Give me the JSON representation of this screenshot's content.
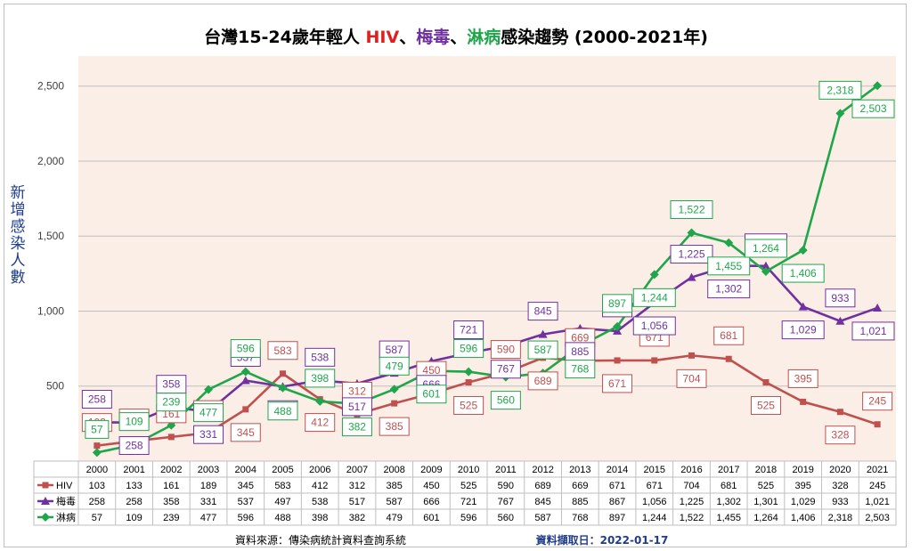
{
  "chart_data": {
    "type": "line",
    "title": {
      "prefix": "台灣15-24歲年輕人 ",
      "hiv": "HIV",
      "sep1": "、",
      "syphilis": "梅毒",
      "sep2": "、",
      "gonorrhea": "淋病",
      "suffix": "感染趨勢 (2000-2021年)"
    },
    "ylabel": "新增感染人數",
    "ylim": [
      0,
      2700
    ],
    "yticks": [
      0,
      500,
      1000,
      1500,
      2000,
      2500
    ],
    "ytick_labels": [
      "-",
      "500",
      "1,000",
      "1,500",
      "2,000",
      "2,500"
    ],
    "grid": true,
    "legend": "data-table",
    "categories": [
      "2000",
      "2001",
      "2002",
      "2003",
      "2004",
      "2005",
      "2006",
      "2007",
      "2008",
      "2009",
      "2010",
      "2011",
      "2012",
      "2013",
      "2014",
      "2015",
      "2016",
      "2017",
      "2018",
      "2019",
      "2020",
      "2021"
    ],
    "series": [
      {
        "name": "HIV",
        "color": "#c0504d",
        "marker": "square",
        "values": [
          103,
          133,
          161,
          189,
          345,
          583,
          412,
          312,
          385,
          450,
          525,
          590,
          689,
          669,
          671,
          671,
          704,
          681,
          525,
          395,
          328,
          245
        ],
        "labels": [
          "103",
          "133",
          "161",
          "189",
          "345",
          "583",
          "412",
          "312",
          "385",
          "450",
          "525",
          "590",
          "689",
          "669",
          "671",
          "671",
          "704",
          "681",
          "525",
          "395",
          "328",
          "245"
        ]
      },
      {
        "name": "梅毒",
        "color": "#7030a0",
        "marker": "triangle",
        "values": [
          258,
          258,
          358,
          331,
          537,
          497,
          538,
          517,
          587,
          666,
          721,
          767,
          845,
          885,
          867,
          1056,
          1225,
          1302,
          1301,
          1029,
          933,
          1021
        ],
        "labels": [
          "258",
          "258",
          "358",
          "331",
          "537",
          "497",
          "538",
          "517",
          "587",
          "666",
          "721",
          "767",
          "845",
          "885",
          "867",
          "1,056",
          "1,225",
          "1,302",
          "1,301",
          "1,029",
          "933",
          "1,021"
        ]
      },
      {
        "name": "淋病",
        "color": "#1fa64b",
        "marker": "diamond",
        "values": [
          57,
          109,
          239,
          477,
          596,
          488,
          398,
          382,
          479,
          601,
          596,
          560,
          587,
          768,
          897,
          1244,
          1522,
          1455,
          1264,
          1406,
          2318,
          2503
        ],
        "labels": [
          "57",
          "109",
          "239",
          "477",
          "596",
          "488",
          "398",
          "382",
          "479",
          "601",
          "596",
          "560",
          "587",
          "768",
          "897",
          "1,244",
          "1,522",
          "1,455",
          "1,264",
          "1,406",
          "2,318",
          "2,503"
        ]
      }
    ],
    "colors": {
      "plot_bg": "#fbeee6",
      "grid": "#bfbfbf",
      "title_dark": "#000000"
    }
  },
  "footer": {
    "source": "資料來源：傳染病統計資料查詢系統",
    "date": "資料擷取日：2022-01-17"
  }
}
